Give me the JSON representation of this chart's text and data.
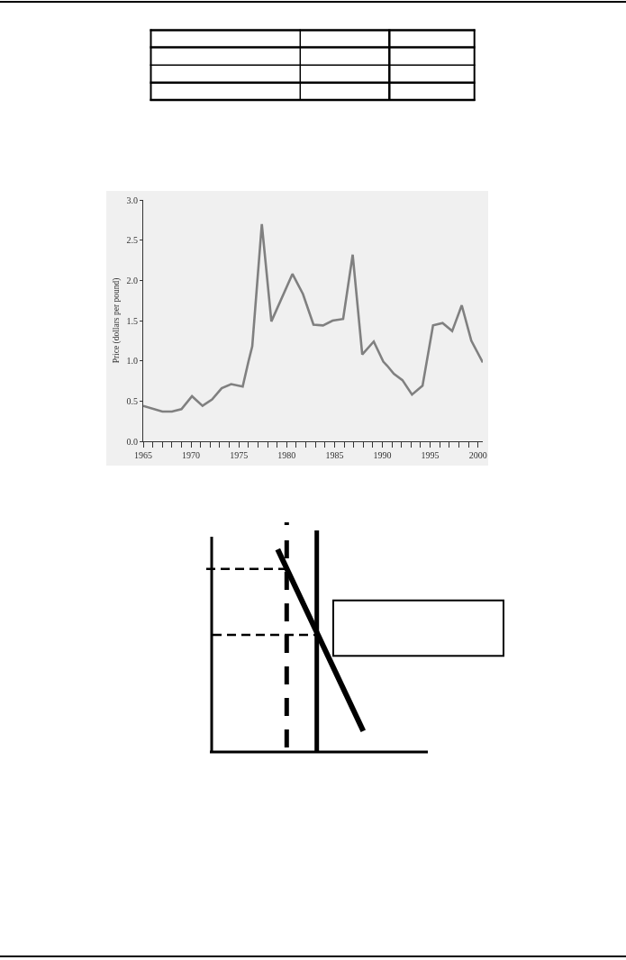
{
  "chart_data": {
    "type": "line",
    "ylabel": "Price (dollars per pound)",
    "x": [
      1965.0,
      1967.0,
      1968.0,
      1969.0,
      1970.1,
      1971.2,
      1972.2,
      1973.2,
      1974.2,
      1975.4,
      1976.0,
      1976.4,
      1977.4,
      1978.4,
      1980.6,
      1981.7,
      1982.8,
      1983.8,
      1984.8,
      1985.9,
      1986.9,
      1987.9,
      1989.1,
      1990.1,
      1990.5,
      1991.2,
      1992.1,
      1993.1,
      1994.2,
      1995.3,
      1996.3,
      1997.3,
      1998.3,
      1999.3,
      2000.5
    ],
    "series": [
      {
        "color": "#808080",
        "values": [
          0.44,
          0.37,
          0.37,
          0.4,
          0.56,
          0.44,
          0.52,
          0.66,
          0.71,
          0.68,
          0.99,
          1.18,
          2.7,
          1.49,
          2.08,
          1.83,
          1.45,
          1.44,
          1.5,
          1.52,
          2.32,
          1.08,
          1.24,
          0.99,
          0.94,
          0.84,
          0.76,
          0.58,
          0.69,
          1.44,
          1.47,
          1.37,
          1.69,
          1.25,
          0.98
        ]
      }
    ],
    "xlim": [
      1965,
      2000.5
    ],
    "xticks": [
      1965,
      {
        "value": 1966,
        "label": null
      },
      {
        "value": 1967,
        "label": null
      },
      {
        "value": 1968,
        "label": null
      },
      {
        "value": 1969,
        "label": null
      },
      1970,
      {
        "value": 1971,
        "label": null
      },
      {
        "value": 1972,
        "label": null
      },
      {
        "value": 1973,
        "label": null
      },
      {
        "value": 1974,
        "label": null
      },
      1975,
      {
        "value": 1976,
        "label": null
      },
      {
        "value": 1977,
        "label": null
      },
      {
        "value": 1978,
        "label": null
      },
      {
        "value": 1979,
        "label": null
      },
      1980,
      {
        "value": 1981,
        "label": null
      },
      {
        "value": 1982,
        "label": null
      },
      {
        "value": 1983,
        "label": null
      },
      {
        "value": 1984,
        "label": null
      },
      1985,
      {
        "value": 1986,
        "label": null
      },
      {
        "value": 1987,
        "label": null
      },
      {
        "value": 1988,
        "label": null
      },
      {
        "value": 1989,
        "label": null
      },
      1990,
      {
        "value": 1991,
        "label": null
      },
      {
        "value": 1992,
        "label": null
      },
      {
        "value": 1993,
        "label": null
      },
      {
        "value": 1994,
        "label": null
      },
      1995,
      {
        "value": 1996,
        "label": null
      },
      {
        "value": 1997,
        "label": null
      },
      {
        "value": 1998,
        "label": null
      },
      {
        "value": 1999,
        "label": null
      },
      2000
    ],
    "ylim": [
      0,
      3
    ],
    "yticks": [
      {
        "value": 0,
        "label": "0.0"
      },
      {
        "value": 0.5,
        "label": "0.5"
      },
      {
        "value": 1,
        "label": "1.0"
      },
      {
        "value": 1.5,
        "label": "1.5"
      },
      {
        "value": 2,
        "label": "2.0"
      },
      {
        "value": 2.5,
        "label": "2.5"
      },
      {
        "value": 3,
        "label": "3.0"
      }
    ],
    "line_style": "solid"
  }
}
